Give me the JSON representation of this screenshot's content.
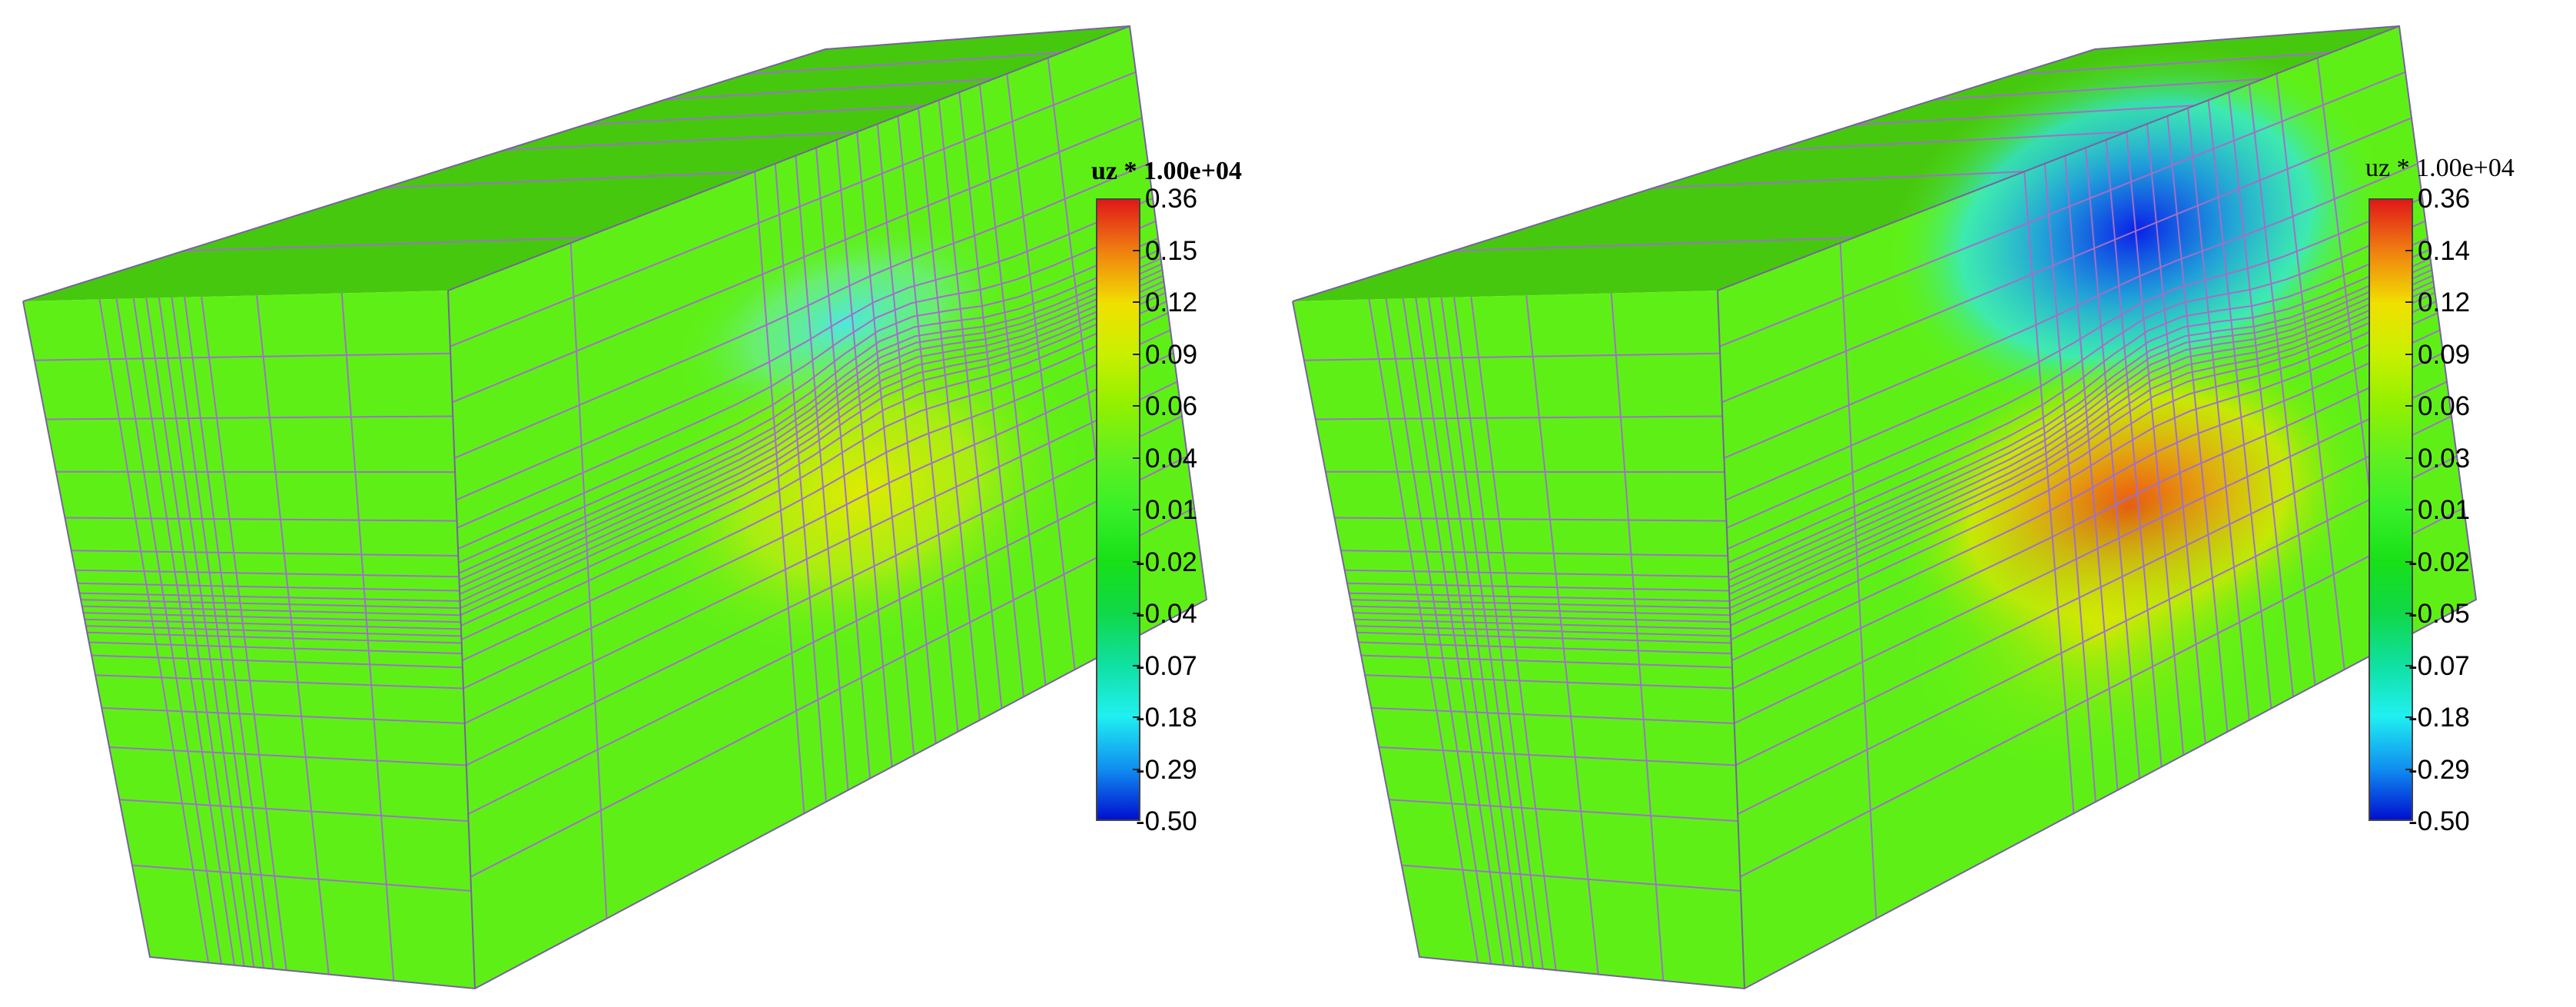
{
  "panels": [
    {
      "id": "left",
      "legend": {
        "title": "uz * 1.00e+04",
        "title_bold": true,
        "ticks": [
          "0.36",
          "0.15",
          "0.12",
          "0.09",
          "0.06",
          "0.04",
          "0.01",
          "-0.02",
          "-0.04",
          "-0.07",
          "-0.18",
          "-0.29",
          "-0.50"
        ]
      },
      "colors": {
        "base": "#5ef016",
        "top_face": "#46c80f",
        "mesh": "#a070c8",
        "neg_peak": "#4fe6e6",
        "pos_peak": "#e6e600"
      }
    },
    {
      "id": "right",
      "legend": {
        "title": "uz * 1.00e+04",
        "title_bold": false,
        "ticks": [
          "0.36",
          "0.14",
          "0.12",
          "0.09",
          "0.06",
          "0.03",
          "0.01",
          "-0.02",
          "-0.05",
          "-0.07",
          "-0.18",
          "-0.29",
          "-0.50"
        ]
      },
      "colors": {
        "base": "#5ef016",
        "top_face": "#46c80f",
        "mesh": "#a070c8",
        "neg_peak": "#0a2cf0",
        "pos_peak": "#f07010"
      }
    }
  ],
  "colormap": [
    "#e01818",
    "#f08010",
    "#f0e000",
    "#c8f000",
    "#90f000",
    "#60f020",
    "#38f028",
    "#18e018",
    "#10d848",
    "#10e0a0",
    "#20f0f0",
    "#1090f0",
    "#0010d0"
  ]
}
